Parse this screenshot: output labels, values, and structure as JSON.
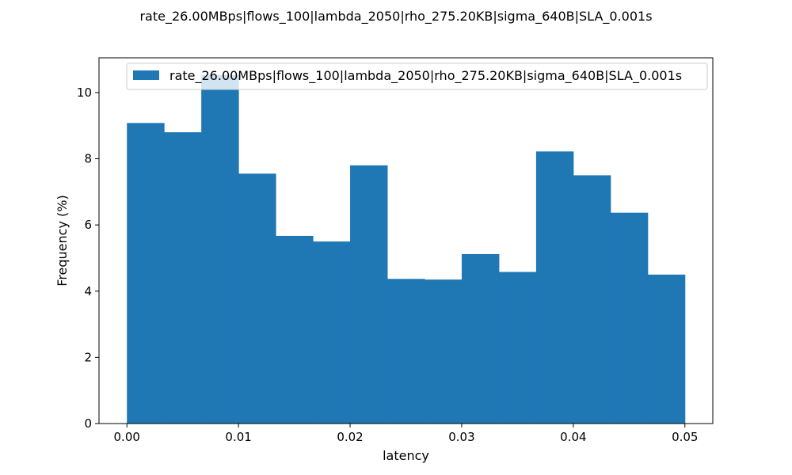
{
  "chart_data": {
    "type": "bar",
    "title": "rate_26.00MBps|flows_100|lambda_2050|rho_275.20KB|sigma_640B|SLA_0.001s",
    "xlabel": "latency",
    "ylabel": "Frequency (%)",
    "bin_edges": [
      0.0,
      0.003333,
      0.006667,
      0.01,
      0.013333,
      0.016667,
      0.02,
      0.023333,
      0.026667,
      0.03,
      0.033333,
      0.036667,
      0.04,
      0.043333,
      0.046667,
      0.05
    ],
    "values": [
      9.08,
      8.8,
      10.53,
      7.55,
      5.67,
      5.5,
      7.8,
      4.37,
      4.35,
      5.12,
      4.58,
      8.22,
      7.5,
      6.37,
      4.5
    ],
    "series": [
      {
        "name": "rate_26.00MBps|flows_100|lambda_2050|rho_275.20KB|sigma_640B|SLA_0.001s",
        "color": "#1f77b4"
      }
    ],
    "xlim": [
      -0.0025,
      0.0525
    ],
    "ylim": [
      0,
      11.05
    ],
    "xticks": [
      0.0,
      0.01,
      0.02,
      0.03,
      0.04,
      0.05
    ],
    "xtick_labels": [
      "0.00",
      "0.01",
      "0.02",
      "0.03",
      "0.04",
      "0.05"
    ],
    "yticks": [
      0,
      2,
      4,
      6,
      8,
      10
    ],
    "ytick_labels": [
      "0",
      "2",
      "4",
      "6",
      "8",
      "10"
    ],
    "legend_position": "top-right",
    "grid": false
  }
}
